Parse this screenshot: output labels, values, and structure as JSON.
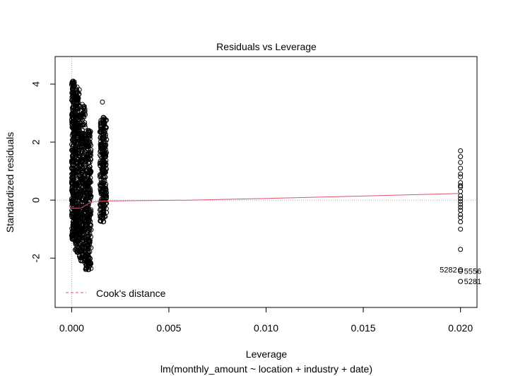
{
  "chart_data": {
    "type": "scatter",
    "title": "Residuals vs Leverage",
    "xlabel": "Leverage",
    "subtitle": "lm(monthly_amount ~ location + industry + date)",
    "ylabel": "Standardized residuals",
    "xlim": [
      -0.00085,
      0.02085
    ],
    "ylim": [
      -3.7,
      4.95
    ],
    "x_ticks": [
      0.0,
      0.005,
      0.01,
      0.015,
      0.02
    ],
    "x_tick_labels": [
      "0.000",
      "0.005",
      "0.010",
      "0.015",
      "0.020"
    ],
    "y_ticks": [
      -2,
      0,
      2,
      4
    ],
    "y_tick_labels": [
      "-2",
      "0",
      "2",
      "4"
    ],
    "reference_lines": {
      "h": 0,
      "v": 0,
      "style": "dotted",
      "color": "#a0a0a0"
    },
    "point_style": {
      "shape": "open-circle",
      "color": "#000000"
    },
    "clusters": [
      {
        "x_range": [
          0.0,
          0.00016
        ],
        "y_range": [
          -1.35,
          4.1
        ]
      },
      {
        "x_range": [
          0.00016,
          0.0004
        ],
        "y_range": [
          -1.8,
          3.9
        ]
      },
      {
        "x_range": [
          0.0004,
          0.0007
        ],
        "y_range": [
          -2.1,
          3.3
        ]
      },
      {
        "x_range": [
          0.0007,
          0.001
        ],
        "y_range": [
          -2.4,
          2.4
        ]
      },
      {
        "x_range": [
          0.00145,
          0.0018
        ],
        "y_range": [
          -0.75,
          2.85
        ]
      }
    ],
    "cluster_extra_points": [
      {
        "x": 0.00158,
        "y": 3.38
      },
      {
        "x": 0.00165,
        "y": 2.85
      }
    ],
    "high_leverage_points": [
      {
        "x": 0.02,
        "y": 1.7
      },
      {
        "x": 0.02,
        "y": 1.5
      },
      {
        "x": 0.02,
        "y": 1.3
      },
      {
        "x": 0.02,
        "y": 1.1
      },
      {
        "x": 0.02,
        "y": 0.9
      },
      {
        "x": 0.02,
        "y": 0.8
      },
      {
        "x": 0.02,
        "y": 0.6
      },
      {
        "x": 0.02,
        "y": 0.5
      },
      {
        "x": 0.02,
        "y": 0.45
      },
      {
        "x": 0.02,
        "y": 0.3
      },
      {
        "x": 0.02,
        "y": 0.15
      },
      {
        "x": 0.02,
        "y": 0.05
      },
      {
        "x": 0.02,
        "y": -0.05
      },
      {
        "x": 0.02,
        "y": -0.15
      },
      {
        "x": 0.02,
        "y": -0.25
      },
      {
        "x": 0.02,
        "y": -0.35
      },
      {
        "x": 0.02,
        "y": -0.5
      },
      {
        "x": 0.02,
        "y": -0.6
      },
      {
        "x": 0.02,
        "y": -0.75
      },
      {
        "x": 0.02,
        "y": -1.0
      },
      {
        "x": 0.02,
        "y": -1.7
      },
      {
        "x": 0.02,
        "y": -2.4
      },
      {
        "x": 0.02,
        "y": -2.45
      },
      {
        "x": 0.02,
        "y": -2.8
      }
    ],
    "labeled_points": [
      {
        "label": "5282",
        "x": 0.02,
        "y": -2.4,
        "side": "left"
      },
      {
        "label": "5556",
        "x": 0.02,
        "y": -2.45,
        "side": "right"
      },
      {
        "label": "5281",
        "x": 0.02,
        "y": -2.8,
        "side": "right"
      }
    ],
    "smoother": {
      "name": "smoother",
      "color": "#df536b",
      "x": [
        0.0,
        0.0005,
        0.0009,
        0.0012,
        0.0018,
        0.003,
        0.006,
        0.01,
        0.015,
        0.02
      ],
      "y": [
        -0.28,
        -0.27,
        -0.1,
        -0.05,
        -0.03,
        -0.02,
        0.0,
        0.06,
        0.14,
        0.23
      ]
    },
    "legend": {
      "position": "bottom-left",
      "entries": [
        {
          "label": "Cook's distance",
          "color": "#df536b",
          "style": "dashed"
        }
      ]
    }
  }
}
